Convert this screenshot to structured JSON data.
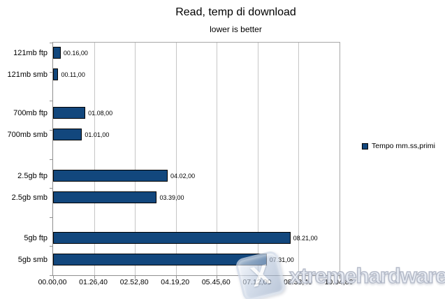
{
  "chart_data": {
    "type": "bar",
    "orientation": "horizontal",
    "title": "Read, temp di download",
    "subtitle": "lower is better",
    "categories": [
      "121mb ftp",
      "121mb smb",
      "700mb ftp",
      "700mb smb",
      "2.5gb ftp",
      "2.5gb smb",
      "5gb ftp",
      "5gb smb"
    ],
    "series": [
      {
        "name": "Tempo mm.ss,primi",
        "values_seconds": [
          16,
          11,
          68,
          61,
          242,
          219,
          501,
          451
        ],
        "value_labels": [
          "00.16,00",
          "00.11,00",
          "01.08,00",
          "01.01,00",
          "04.02,00",
          "03.39,00",
          "08.21,00",
          "07.31,00"
        ]
      }
    ],
    "xlabel": "",
    "ylabel": "",
    "xlim_seconds": [
      0,
      604.8
    ],
    "x_ticks": [
      "00.00,00",
      "01.26,40",
      "02.52,80",
      "04.19,20",
      "05.45,60",
      "07.12,00",
      "08.38,40",
      "10.04,80"
    ],
    "x_tick_seconds": [
      0,
      86.4,
      172.8,
      259.2,
      345.6,
      432.0,
      518.4,
      604.8
    ],
    "grid": "vertical",
    "legend_position": "right",
    "bar_color": "#12477D",
    "bar_border_color": "#000000",
    "lower_is_better": true
  },
  "legend": {
    "label": "Tempo mm.ss,primi",
    "swatch_color": "#12477D"
  },
  "watermark": {
    "text": "xtremehardware.it",
    "logo_glyph": "X"
  }
}
